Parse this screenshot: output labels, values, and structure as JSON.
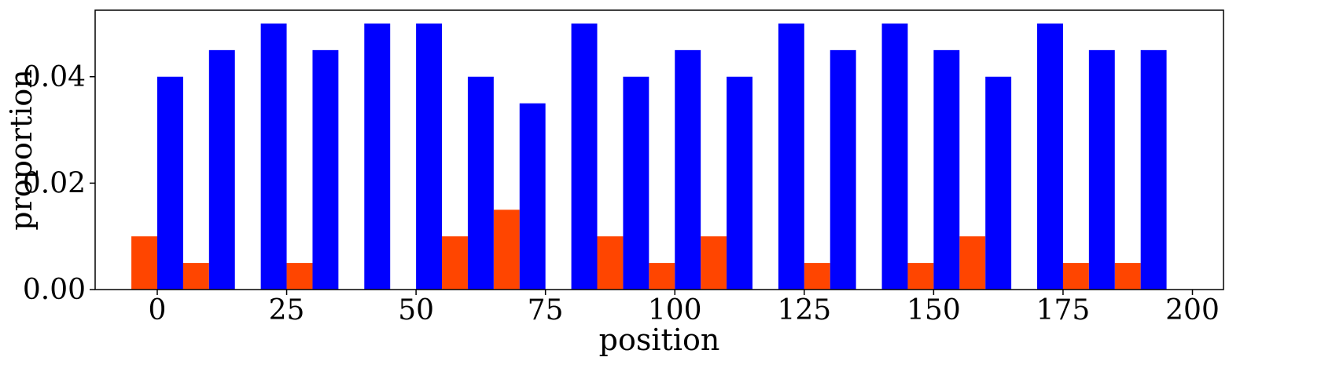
{
  "chart_data": {
    "type": "bar",
    "xlabel": "position",
    "ylabel": "proportion",
    "xlim": [
      -12,
      206
    ],
    "ylim": [
      0,
      0.0525
    ],
    "xticks": [
      0,
      25,
      50,
      75,
      100,
      125,
      150,
      175,
      200
    ],
    "xtick_labels": [
      "0",
      "25",
      "50",
      "75",
      "100",
      "125",
      "150",
      "175",
      "200"
    ],
    "yticks": [
      0.0,
      0.02,
      0.04
    ],
    "ytick_labels": [
      "0.00",
      "0.02",
      "0.04"
    ],
    "bin_width": 5,
    "grid": false,
    "legend": false,
    "series": [
      {
        "color": "#ff4500",
        "x": [
          -2.5,
          7.5,
          17.5,
          27.5,
          37.5,
          47.5,
          57.5,
          67.5,
          77.5,
          87.5,
          97.5,
          107.5,
          117.5,
          127.5,
          137.5,
          147.5,
          157.5,
          167.5,
          177.5,
          187.5,
          197.5
        ],
        "values": [
          0.01,
          0.005,
          0.0,
          0.005,
          0.0,
          0.0,
          0.01,
          0.015,
          0.0,
          0.01,
          0.005,
          0.01,
          0.0,
          0.005,
          0.0,
          0.005,
          0.01,
          0.0,
          0.005,
          0.005,
          0.0
        ]
      },
      {
        "color": "#0000ff",
        "x": [
          2.5,
          12.5,
          22.5,
          32.5,
          42.5,
          52.5,
          62.5,
          72.5,
          82.5,
          92.5,
          102.5,
          112.5,
          122.5,
          132.5,
          142.5,
          152.5,
          162.5,
          172.5,
          182.5,
          192.5
        ],
        "values": [
          0.04,
          0.045,
          0.05,
          0.045,
          0.05,
          0.05,
          0.04,
          0.035,
          0.05,
          0.04,
          0.045,
          0.04,
          0.05,
          0.045,
          0.05,
          0.045,
          0.04,
          0.05,
          0.045,
          0.045
        ]
      }
    ]
  }
}
